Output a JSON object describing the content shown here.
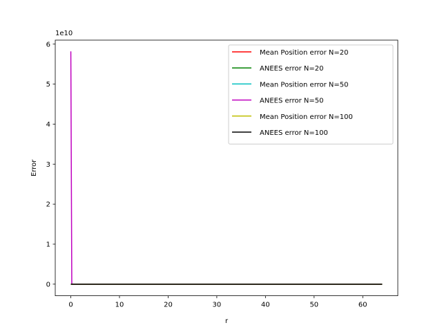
{
  "chart_data": {
    "type": "line",
    "title": "",
    "xlabel": "r",
    "ylabel": "Error",
    "y_offset_text": "1e10",
    "y_scale_factor": 10000000000,
    "xlim": [
      -3.2,
      67.2
    ],
    "ylim": [
      -2900000000.0,
      61000000000.0
    ],
    "xticks": [
      0,
      10,
      20,
      30,
      40,
      50,
      60
    ],
    "yticks": [
      0,
      1,
      2,
      3,
      4,
      5,
      6
    ],
    "grid": false,
    "legend_position": "top-right",
    "series": [
      {
        "name": "Mean Position error N=20",
        "color": "#ff0000",
        "x": [
          0,
          64
        ],
        "y": [
          0,
          0
        ]
      },
      {
        "name": "ANEES error N=20",
        "color": "#008000",
        "x": [
          0,
          64
        ],
        "y": [
          0,
          0
        ]
      },
      {
        "name": "Mean Position error N=50",
        "color": "#00bfbf",
        "x": [
          0,
          64
        ],
        "y": [
          0,
          0
        ]
      },
      {
        "name": "ANEES error N=50",
        "color": "#bf00bf",
        "x": [
          0,
          0.2,
          1,
          64
        ],
        "y": [
          58200000000,
          0,
          0,
          0
        ]
      },
      {
        "name": "Mean Position error N=100",
        "color": "#bfbf00",
        "x": [
          0,
          64
        ],
        "y": [
          0,
          0
        ]
      },
      {
        "name": "ANEES error N=100",
        "color": "#000000",
        "x": [
          0,
          64
        ],
        "y": [
          0,
          0
        ]
      }
    ]
  }
}
